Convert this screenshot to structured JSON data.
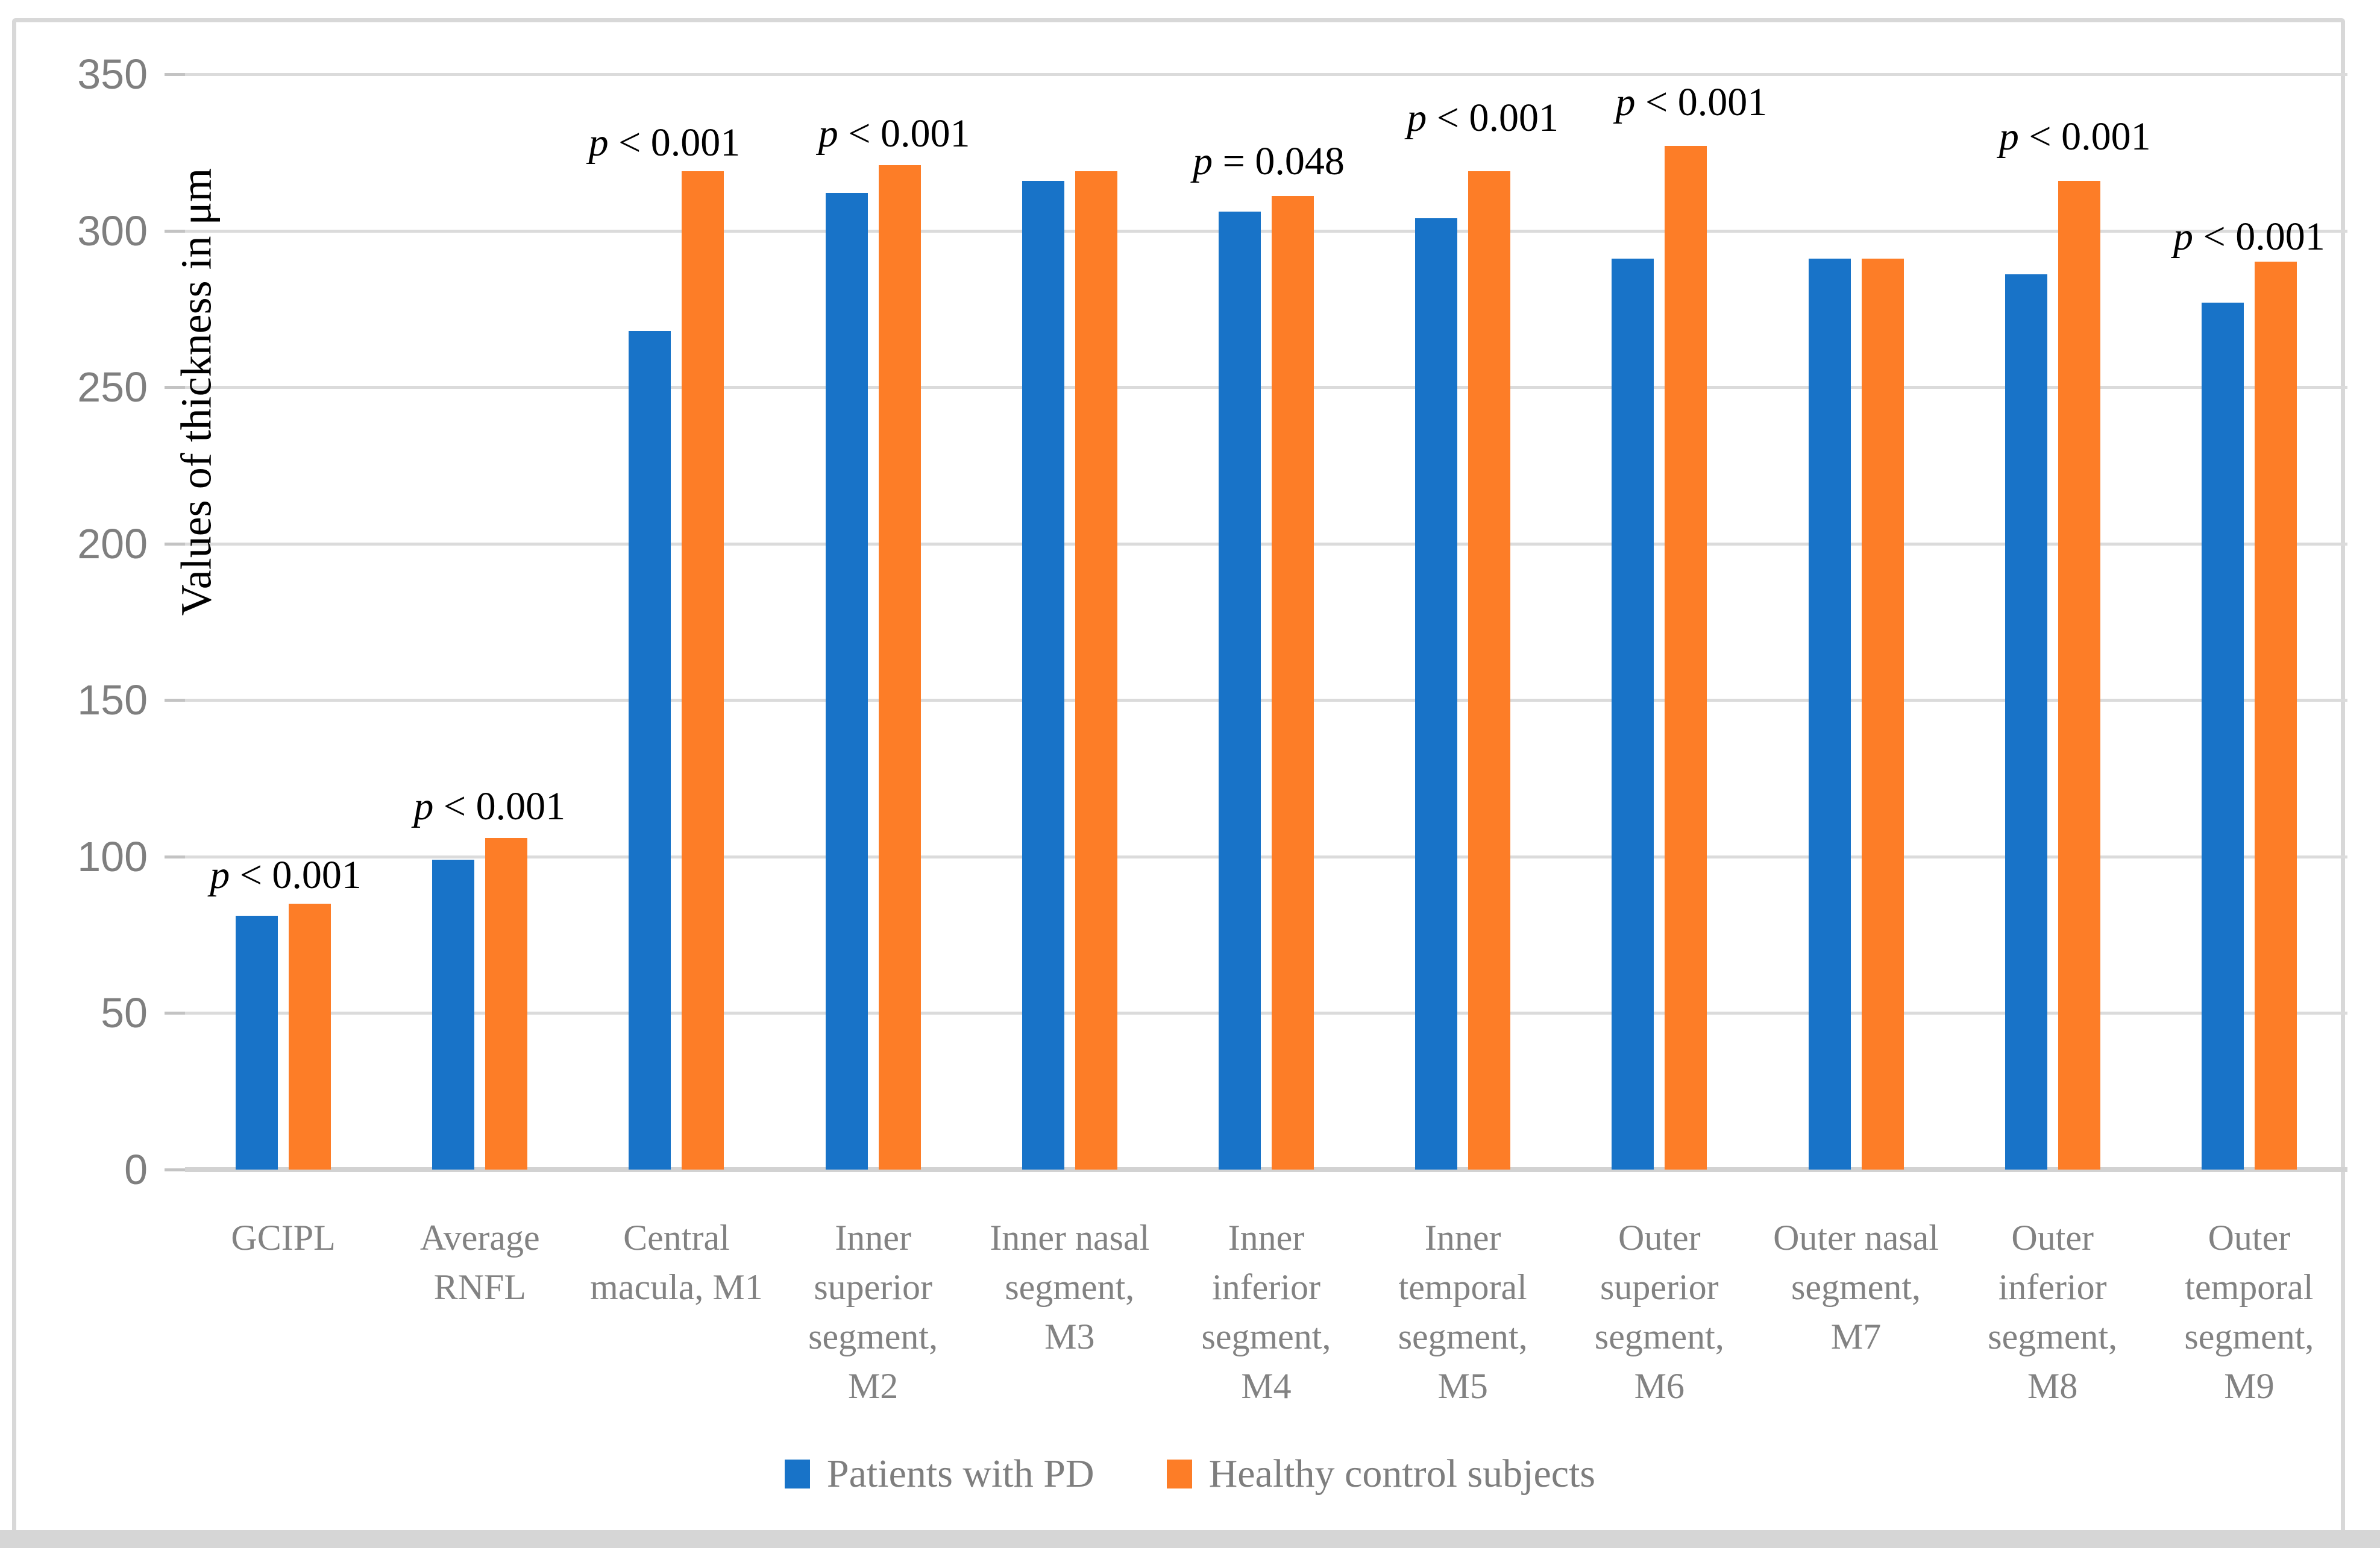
{
  "chart_data": {
    "type": "bar",
    "title": "",
    "xlabel": "",
    "ylabel": "Values of thickness in μm",
    "ylim": [
      0,
      350
    ],
    "yticks": [
      0,
      50,
      100,
      150,
      200,
      250,
      300,
      350
    ],
    "grid": true,
    "legend_position": "bottom",
    "categories": [
      "GCIPL",
      "Average RNFL",
      "Central macula, M1",
      "Inner superior segment, M2",
      "Inner nasal segment, M3",
      "Inner inferior segment, M4",
      "Inner temporal segment, M5",
      "Outer superior segment, M6",
      "Outer nasal segment, M7",
      "Outer inferior segment, M8",
      "Outer temporal segment, M9"
    ],
    "series": [
      {
        "name": "Patients with PD",
        "color": "#1873C8",
        "values": [
          81,
          99,
          268,
          312,
          316,
          306,
          304,
          291,
          291,
          286,
          277
        ]
      },
      {
        "name": "Healthy control subjects",
        "color": "#FD7D27",
        "values": [
          85,
          106,
          319,
          321,
          319,
          311,
          319,
          327,
          291,
          316,
          290
        ]
      }
    ],
    "annotations": [
      {
        "category_index": 0,
        "text": "p < 0.001",
        "y_value": 94,
        "dx": 4
      },
      {
        "category_index": 1,
        "text": "p < 0.001",
        "y_value": 116,
        "dx": 16
      },
      {
        "category_index": 2,
        "text": "p < 0.001",
        "y_value": 328,
        "dx": -20
      },
      {
        "category_index": 3,
        "text": "p < 0.001",
        "y_value": 331,
        "dx": 35
      },
      {
        "category_index": 5,
        "text": "p = 0.048",
        "y_value": 322,
        "dx": 4
      },
      {
        "category_index": 6,
        "text": "p < 0.001",
        "y_value": 336,
        "dx": 33
      },
      {
        "category_index": 7,
        "text": "p < 0.001",
        "y_value": 341,
        "dx": 53
      },
      {
        "category_index": 9,
        "text": "p < 0.001",
        "y_value": 330,
        "dx": 37
      },
      {
        "category_index": 10,
        "text": "p < 0.001",
        "y_value": 298,
        "dx": 0
      }
    ]
  },
  "colors": {
    "background": "#FFFFFF",
    "frame": "#D8D8D8",
    "bottom_strip": "#D6D6D6",
    "gridline": "#DBDBDB",
    "axis_line": "#D2D2D2",
    "tick_mark": "#C3C3C3",
    "tick_label_text": "#7F7F7F",
    "category_label_text": "#828282",
    "legend_text": "#7E7E7E",
    "annotation_text": "#000000",
    "series_blue": "#1873C8",
    "series_orange": "#FD7D27"
  }
}
